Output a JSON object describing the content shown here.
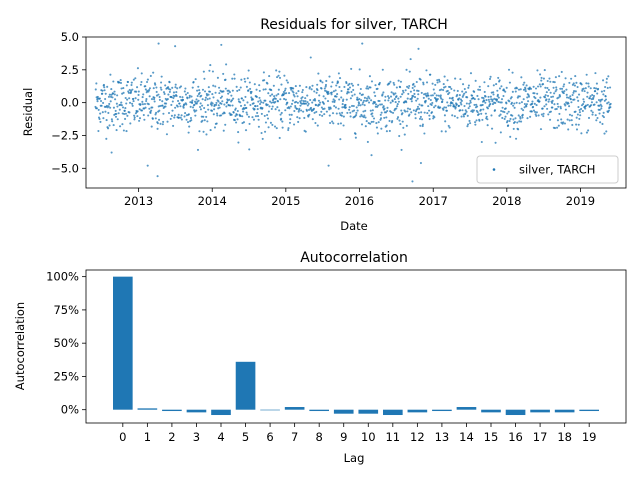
{
  "chart_data": [
    {
      "type": "scatter",
      "title": "Residuals for silver, TARCH",
      "xlabel": "Date",
      "ylabel": "Residual",
      "xlim": [
        "2012-04-15",
        "2019-08-15"
      ],
      "ylim": [
        -6.5,
        5.0
      ],
      "x_ticks": [
        "2013",
        "2014",
        "2015",
        "2016",
        "2017",
        "2018",
        "2019"
      ],
      "y_ticks": [
        "5.0",
        "2.5",
        "0.0",
        "−2.5",
        "−5.0"
      ],
      "y_tick_values": [
        5.0,
        2.5,
        0.0,
        -2.5,
        -5.0
      ],
      "legend": {
        "label": "silver, TARCH",
        "placement": "lower-right"
      },
      "date_range": [
        "2012-06-01",
        "2019-05-31"
      ],
      "point_count": 1760,
      "outliers": [
        {
          "x": "2013-04-10",
          "y": 4.5
        },
        {
          "x": "2013-07-01",
          "y": 4.3
        },
        {
          "x": "2014-02-15",
          "y": 4.4
        },
        {
          "x": "2016-01-15",
          "y": 4.5
        },
        {
          "x": "2016-10-20",
          "y": 4.1
        },
        {
          "x": "2013-04-05",
          "y": -5.6
        },
        {
          "x": "2013-02-15",
          "y": -4.8
        },
        {
          "x": "2016-09-20",
          "y": -6.0
        },
        {
          "x": "2015-08-01",
          "y": -4.8
        },
        {
          "x": "2016-11-01",
          "y": -4.6
        },
        {
          "x": "2012-08-20",
          "y": -3.8
        },
        {
          "x": "2016-03-01",
          "y": -4.0
        }
      ],
      "color": "#1f77b4",
      "grid": false
    },
    {
      "type": "bar",
      "title": "Autocorrelation",
      "xlabel": "Lag",
      "ylabel": "Autocorrelation",
      "categories": [
        "0",
        "1",
        "2",
        "3",
        "4",
        "5",
        "6",
        "7",
        "8",
        "9",
        "10",
        "11",
        "12",
        "13",
        "14",
        "15",
        "16",
        "17",
        "18",
        "19"
      ],
      "values": [
        1.0,
        0.01,
        -0.01,
        -0.02,
        -0.04,
        0.36,
        0.0,
        0.02,
        -0.01,
        -0.03,
        -0.03,
        -0.04,
        -0.02,
        -0.01,
        0.02,
        -0.02,
        -0.04,
        -0.02,
        -0.02,
        -0.01
      ],
      "ylim": [
        -0.1,
        1.05
      ],
      "y_ticks": [
        "100%",
        "75%",
        "50%",
        "25%",
        "0%"
      ],
      "y_tick_values": [
        1.0,
        0.75,
        0.5,
        0.25,
        0.0
      ],
      "color": "#1f77b4",
      "grid": false
    }
  ]
}
